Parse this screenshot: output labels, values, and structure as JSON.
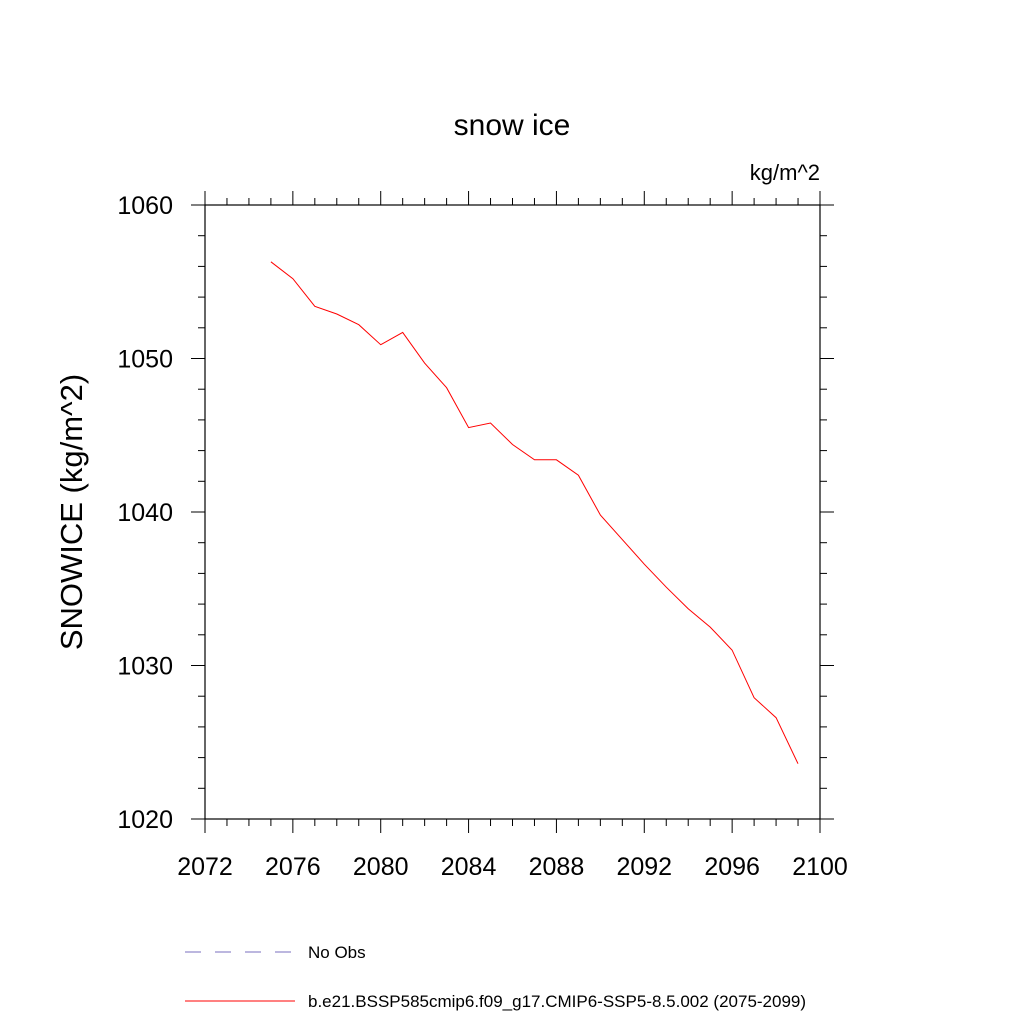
{
  "chart_data": {
    "type": "line",
    "title": "snow ice",
    "units_label": "kg/m^2",
    "xlabel": "",
    "ylabel": "SNOWICE  (kg/m^2)",
    "xlim": [
      2072,
      2100
    ],
    "ylim": [
      1020,
      1060
    ],
    "xticks": [
      2072,
      2076,
      2080,
      2084,
      2088,
      2092,
      2096,
      2100
    ],
    "yticks": [
      1020,
      1030,
      1040,
      1050,
      1060
    ],
    "series": [
      {
        "name": "b.e21.BSSP585cmip6.f09_g17.CMIP6-SSP5-8.5.002 (2075-2099)",
        "color": "#ff0000",
        "style": "solid",
        "x": [
          2075,
          2076,
          2077,
          2078,
          2079,
          2080,
          2081,
          2082,
          2083,
          2084,
          2085,
          2086,
          2087,
          2088,
          2089,
          2090,
          2091,
          2092,
          2093,
          2094,
          2095,
          2096,
          2097,
          2098,
          2099
        ],
        "y": [
          1056.3,
          1055.2,
          1053.4,
          1052.9,
          1052.2,
          1050.9,
          1051.7,
          1049.7,
          1048.1,
          1045.5,
          1045.8,
          1044.4,
          1043.4,
          1043.4,
          1042.4,
          1039.8,
          1038.2,
          1036.6,
          1035.1,
          1033.7,
          1032.5,
          1031.0,
          1027.9,
          1026.6,
          1023.6
        ]
      }
    ],
    "legend": [
      {
        "label": "No Obs",
        "color": "#7a6fbf",
        "style": "dashed"
      },
      {
        "label": "b.e21.BSSP585cmip6.f09_g17.CMIP6-SSP5-8.5.002 (2075-2099)",
        "color": "#ff0000",
        "style": "solid"
      }
    ]
  }
}
